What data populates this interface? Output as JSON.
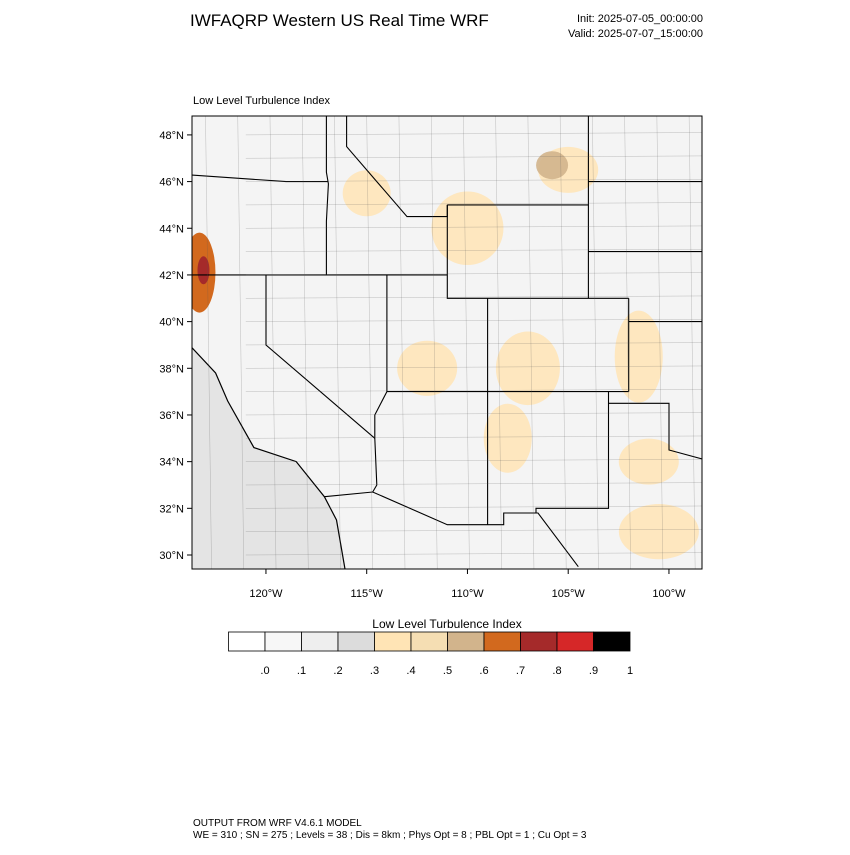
{
  "header": {
    "title": "IWFAQRP Western US Real Time WRF",
    "init": "Init: 2025-07-05_00:00:00",
    "valid": "Valid: 2025-07-07_15:00:00"
  },
  "chart_data": {
    "type": "map",
    "subtitle": "Low Level Turbulence Index",
    "xlim": [
      -123.67,
      -98.36
    ],
    "ylim": [
      29.4,
      48.81
    ],
    "xticks": [
      {
        "value": -120,
        "label": "120°W"
      },
      {
        "value": -115,
        "label": "115°W"
      },
      {
        "value": -110,
        "label": "110°W"
      },
      {
        "value": -105,
        "label": "105°W"
      },
      {
        "value": -100,
        "label": "100°W"
      }
    ],
    "yticks": [
      {
        "value": 30,
        "label": "30°N"
      },
      {
        "value": 32,
        "label": "32°N"
      },
      {
        "value": 34,
        "label": "34°N"
      },
      {
        "value": 36,
        "label": "36°N"
      },
      {
        "value": 38,
        "label": "38°N"
      },
      {
        "value": 40,
        "label": "40°N"
      },
      {
        "value": 42,
        "label": "42°N"
      },
      {
        "value": 44,
        "label": "44°N"
      },
      {
        "value": 46,
        "label": "46°N"
      },
      {
        "value": 48,
        "label": "48°N"
      }
    ],
    "colorbar": {
      "title": "Low Level Turbulence Index",
      "colors": [
        "#ffffff",
        "#f7f7f7",
        "#eeeeee",
        "#dcdcdc",
        "#ffe4b5",
        "#f5deb3",
        "#d2b48c",
        "#d2691e",
        "#a52a2a",
        "#d62728",
        "#000000"
      ],
      "levels": [
        {
          "value": 0,
          "label": ".0"
        },
        {
          "value": 0.1,
          "label": ".1"
        },
        {
          "value": 0.2,
          "label": ".2"
        },
        {
          "value": 0.3,
          "label": ".3"
        },
        {
          "value": 0.4,
          "label": ".4"
        },
        {
          "value": 0.5,
          "label": ".5"
        },
        {
          "value": 0.6,
          "label": ".6"
        },
        {
          "value": 0.7,
          "label": ".7"
        },
        {
          "value": 0.8,
          "label": ".8"
        },
        {
          "value": 0.9,
          "label": ".9"
        },
        1
      ]
    }
  },
  "footer": {
    "line1": "OUTPUT FROM WRF V4.6.1 MODEL",
    "line2": "WE = 310 ; SN = 275 ; Levels = 38 ; Dis = 8km ; Phys Opt = 8 ; PBL Opt = 1 ; Cu Opt = 3"
  }
}
